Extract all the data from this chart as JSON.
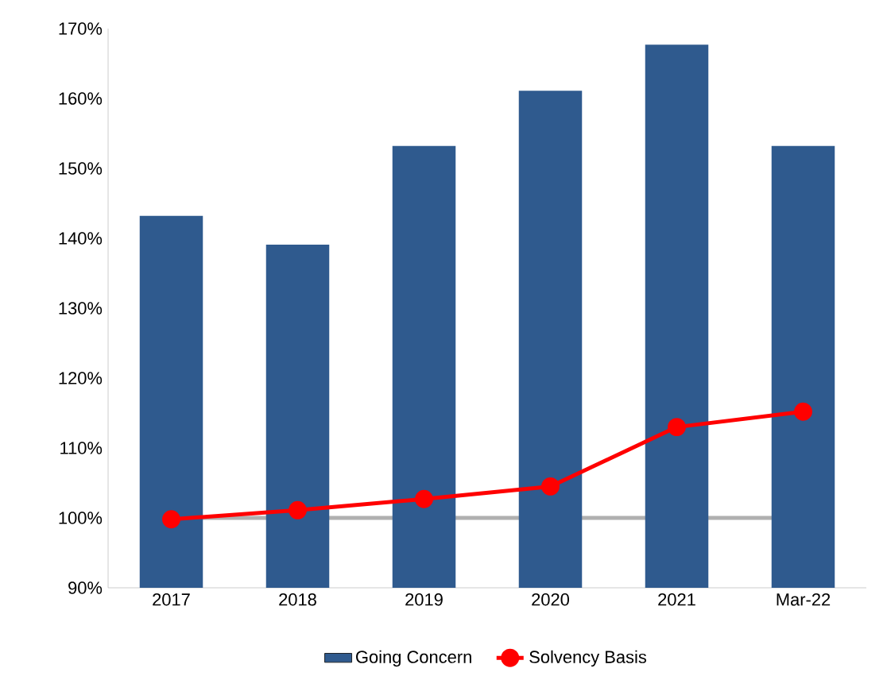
{
  "chart_data": {
    "type": "bar",
    "categories": [
      "2017",
      "2018",
      "2019",
      "2020",
      "2021",
      "Mar-22"
    ],
    "series": [
      {
        "name": "Going Concern",
        "color": "#2f5a8e",
        "values": [
          143.2,
          139.1,
          153.2,
          161.1,
          167.7,
          153.2
        ]
      },
      {
        "name": "Solvency Basis",
        "type": "line",
        "color": "#ff0000",
        "marker": "circle",
        "values": [
          99.8,
          101.1,
          102.7,
          104.5,
          113.0,
          115.2
        ]
      }
    ],
    "ylim": [
      90,
      170
    ],
    "yticks": [
      {
        "value": 90,
        "label": "90%"
      },
      {
        "value": 100,
        "label": "100%"
      },
      {
        "value": 110,
        "label": "110%"
      },
      {
        "value": 120,
        "label": "120%"
      },
      {
        "value": 130,
        "label": "130%"
      },
      {
        "value": 140,
        "label": "140%"
      },
      {
        "value": 150,
        "label": "150%"
      },
      {
        "value": 160,
        "label": "160%"
      },
      {
        "value": 170,
        "label": "170%"
      }
    ],
    "ref_lines": [
      {
        "axis": "y",
        "value": 100,
        "color": "#b0b0b0"
      }
    ],
    "legend": "bottom"
  }
}
